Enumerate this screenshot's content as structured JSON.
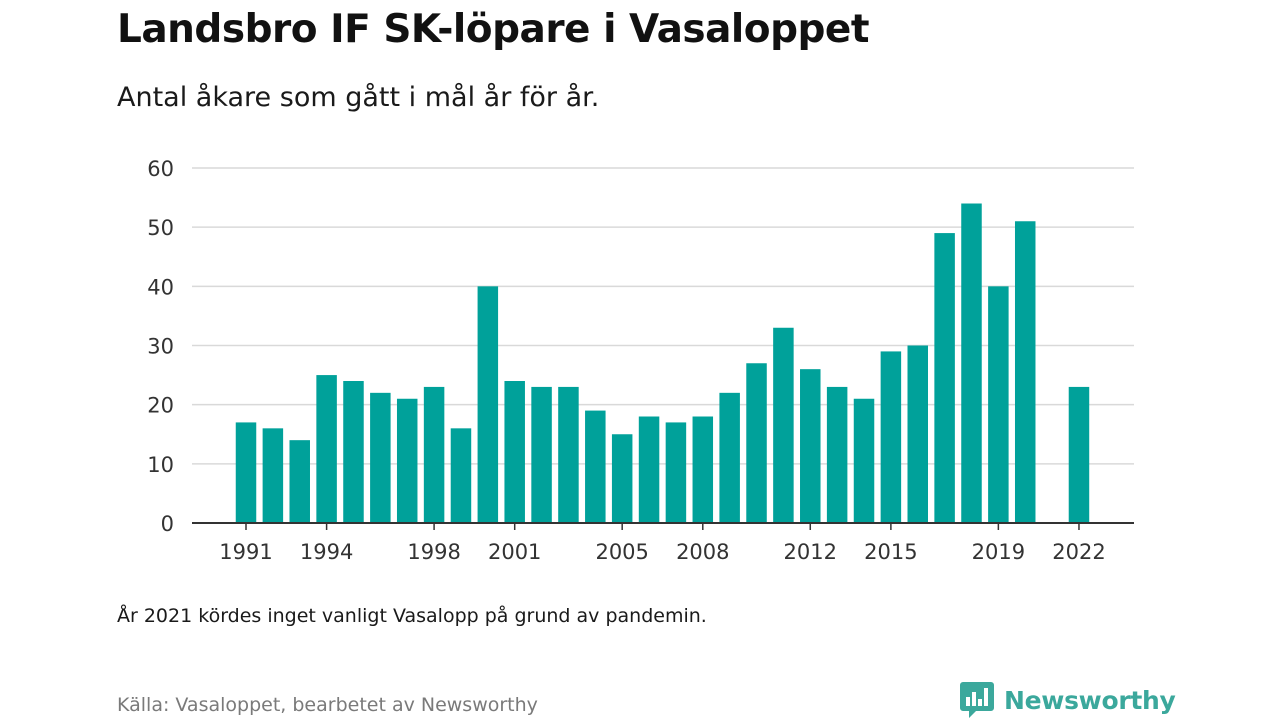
{
  "header": {
    "title": "Landsbro IF SK-löpare i Vasaloppet",
    "subtitle": "Antal åkare som gått i mål år för år."
  },
  "footer": {
    "note": "År 2021 kördes inget vanligt Vasalopp på grund av pandemin.",
    "source": "Källa: Vasaloppet, bearbetet av Newsworthy",
    "brand": "Newsworthy"
  },
  "colors": {
    "bar": "#00a19a",
    "grid": "#d9d9d9",
    "axis": "#333333",
    "brand": "#3ba89c"
  },
  "icons": {
    "brand_logo": "bar-chart-speech-bubble-icon"
  },
  "chart_data": {
    "type": "bar",
    "title": "Landsbro IF SK-löpare i Vasaloppet",
    "subtitle": "Antal åkare som gått i mål år för år.",
    "xlabel": "",
    "ylabel": "",
    "ylim": [
      0,
      60
    ],
    "yticks": [
      0,
      10,
      20,
      30,
      40,
      50,
      60
    ],
    "xtick_labels": [
      "1991",
      "1994",
      "1998",
      "2001",
      "2005",
      "2008",
      "2012",
      "2015",
      "2019",
      "2022"
    ],
    "grid": true,
    "legend": "none",
    "categories": [
      "1991",
      "1992",
      "1993",
      "1994",
      "1995",
      "1996",
      "1997",
      "1998",
      "1999",
      "2000",
      "2001",
      "2002",
      "2003",
      "2004",
      "2005",
      "2006",
      "2007",
      "2008",
      "2009",
      "2010",
      "2011",
      "2012",
      "2013",
      "2014",
      "2015",
      "2016",
      "2017",
      "2018",
      "2019",
      "2020",
      "2021",
      "2022"
    ],
    "values": [
      17,
      16,
      14,
      25,
      24,
      22,
      21,
      23,
      16,
      40,
      24,
      23,
      23,
      19,
      15,
      18,
      17,
      18,
      22,
      27,
      33,
      26,
      23,
      21,
      29,
      30,
      49,
      54,
      40,
      51,
      null,
      23
    ]
  }
}
